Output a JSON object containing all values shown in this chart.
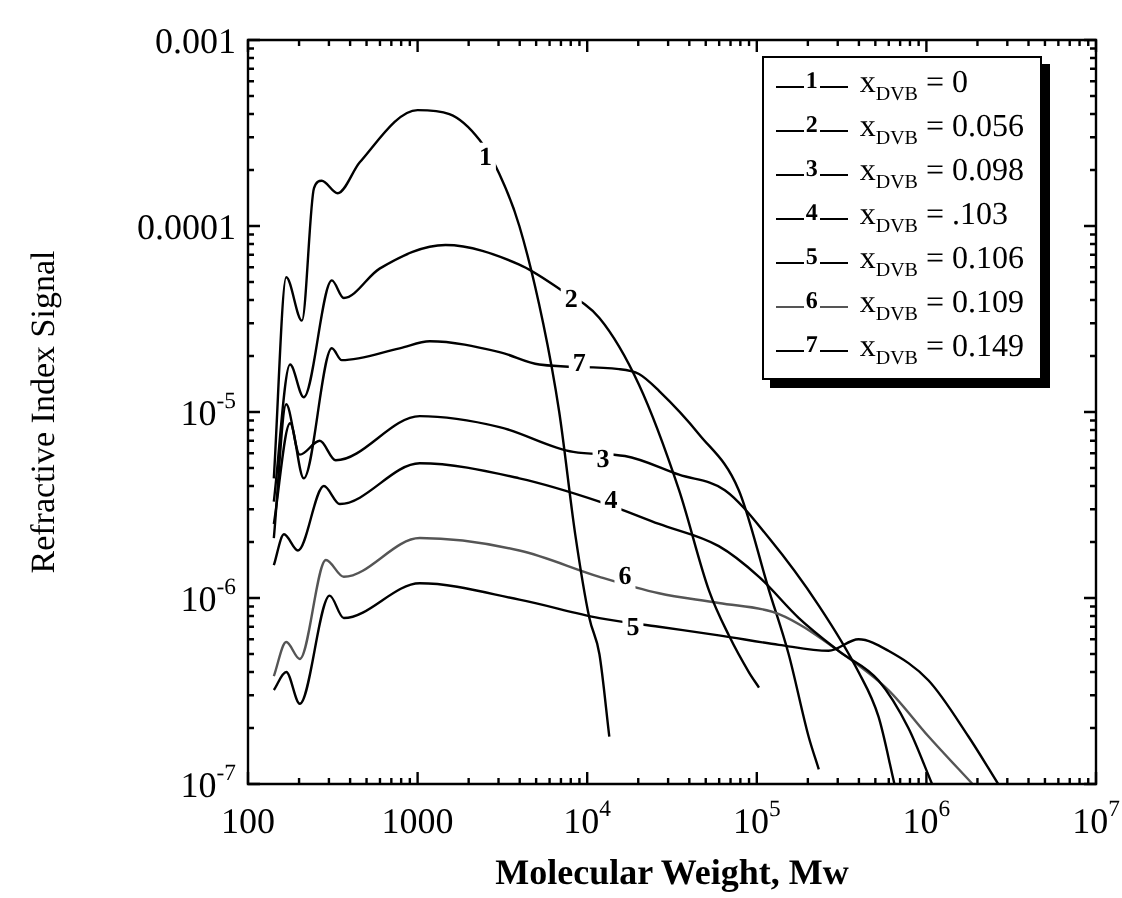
{
  "chart_data": {
    "type": "line",
    "xlabel": "Molecular Weight, Mw",
    "ylabel": "Refractive Index Signal",
    "log": "xy",
    "grid": false,
    "legend": "top right",
    "marker": "none",
    "line_style": "solid",
    "xlim": [
      100,
      10000000
    ],
    "ylim": [
      1e-07,
      0.001
    ],
    "xticks": [
      100,
      {
        "value": 200,
        "label": null
      },
      {
        "value": 300,
        "label": null
      },
      {
        "value": 400,
        "label": null
      },
      {
        "value": 500,
        "label": null
      },
      {
        "value": 600,
        "label": null
      },
      {
        "value": 700,
        "label": null
      },
      {
        "value": 800,
        "label": null
      },
      {
        "value": 900,
        "label": null
      },
      1000,
      {
        "value": 2000,
        "label": null
      },
      {
        "value": 3000,
        "label": null
      },
      {
        "value": 4000,
        "label": null
      },
      {
        "value": 5000,
        "label": null
      },
      {
        "value": 6000,
        "label": null
      },
      {
        "value": 7000,
        "label": null
      },
      {
        "value": 8000,
        "label": null
      },
      {
        "value": 9000,
        "label": null
      },
      {
        "value": 10000,
        "label": "10$^{4}$"
      },
      {
        "value": 20000,
        "label": null
      },
      {
        "value": 30000,
        "label": null
      },
      {
        "value": 40000,
        "label": null
      },
      {
        "value": 50000,
        "label": null
      },
      {
        "value": 60000,
        "label": null
      },
      {
        "value": 70000,
        "label": null
      },
      {
        "value": 80000,
        "label": null
      },
      {
        "value": 90000,
        "label": null
      },
      {
        "value": 100000,
        "label": "10$^{5}$"
      },
      {
        "value": 200000,
        "label": null
      },
      {
        "value": 300000,
        "label": null
      },
      {
        "value": 400000,
        "label": null
      },
      {
        "value": 500000,
        "label": null
      },
      {
        "value": 600000,
        "label": null
      },
      {
        "value": 700000,
        "label": null
      },
      {
        "value": 800000,
        "label": null
      },
      {
        "value": 900000,
        "label": null
      },
      {
        "value": 1000000,
        "label": "10$^{6}$"
      },
      {
        "value": 2000000,
        "label": null
      },
      {
        "value": 3000000,
        "label": null
      },
      {
        "value": 4000000,
        "label": null
      },
      {
        "value": 5000000,
        "label": null
      },
      {
        "value": 6000000,
        "label": null
      },
      {
        "value": 7000000,
        "label": null
      },
      {
        "value": 8000000,
        "label": null
      },
      {
        "value": 9000000,
        "label": null
      },
      {
        "value": 10000000,
        "label": "10$^{7}$"
      }
    ],
    "yticks": [
      {
        "value": 1e-07,
        "label": "10$^{-7}$"
      },
      {
        "value": 2e-07,
        "label": null
      },
      {
        "value": 3e-07,
        "label": null
      },
      {
        "value": 4e-07,
        "label": null
      },
      {
        "value": 5e-07,
        "label": null
      },
      {
        "value": 6e-07,
        "label": null
      },
      {
        "value": 7e-07,
        "label": null
      },
      {
        "value": 8e-07,
        "label": null
      },
      {
        "value": 9e-07,
        "label": null
      },
      {
        "value": 1e-06,
        "label": "10$^{-6}$"
      },
      {
        "value": 2e-06,
        "label": null
      },
      {
        "value": 3e-06,
        "label": null
      },
      {
        "value": 4e-06,
        "label": null
      },
      {
        "value": 5e-06,
        "label": null
      },
      {
        "value": 6e-06,
        "label": null
      },
      {
        "value": 7e-06,
        "label": null
      },
      {
        "value": 8e-06,
        "label": null
      },
      {
        "value": 9e-06,
        "label": null
      },
      {
        "value": 1e-05,
        "label": "10$^{-5}$"
      },
      {
        "value": 2e-05,
        "label": null
      },
      {
        "value": 3e-05,
        "label": null
      },
      {
        "value": 4e-05,
        "label": null
      },
      {
        "value": 5e-05,
        "label": null
      },
      {
        "value": 6e-05,
        "label": null
      },
      {
        "value": 7e-05,
        "label": null
      },
      {
        "value": 8e-05,
        "label": null
      },
      {
        "value": 9e-05,
        "label": null
      },
      {
        "value": 0.0001,
        "label": "0.0001"
      },
      {
        "value": 0.0002,
        "label": null
      },
      {
        "value": 0.0003,
        "label": null
      },
      {
        "value": 0.0004,
        "label": null
      },
      {
        "value": 0.0005,
        "label": null
      },
      {
        "value": 0.0006,
        "label": null
      },
      {
        "value": 0.0007,
        "label": null
      },
      {
        "value": 0.0008,
        "label": null
      },
      {
        "value": 0.0009,
        "label": null
      },
      {
        "value": 0.001,
        "label": "0.001"
      }
    ],
    "series": [
      {
        "name": "x$_{DVB}$ = 0",
        "color": "#000000",
        "x": [
          142,
          168,
          208,
          245,
          272,
          338,
          456,
          1000,
          1540,
          2320,
          3040,
          3980,
          5500,
          6840,
          8500,
          10300,
          11800,
          13500
        ],
        "values": [
          4.4e-06,
          5.3e-05,
          3.1e-05,
          0.00016,
          0.000175,
          0.00015,
          0.00022,
          0.00042,
          0.0004,
          0.00029,
          0.00019,
          0.0001,
          3e-05,
          1e-05,
          2.2e-06,
          7.8e-07,
          5e-07,
          1.8e-07
        ]
      },
      {
        "name": "x$_{DVB}$ = 0.056",
        "color": "#000000",
        "x": [
          142,
          177,
          213,
          312,
          367,
          597,
          1460,
          3980,
          6840,
          11800,
          20200,
          34800,
          52200,
          68400,
          89700,
          103000
        ],
        "values": [
          3.3e-06,
          1.8e-05,
          1.2e-05,
          5.1e-05,
          4.1e-05,
          5.9e-05,
          7.9e-05,
          6.2e-05,
          4.6e-05,
          3.2e-05,
          1.4e-05,
          3.8e-06,
          1.1e-06,
          6.3e-07,
          4e-07,
          3.3e-07
        ]
      },
      {
        "name": "x$_{DVB}$ = 0.098",
        "color": "#000000",
        "x": [
          142,
          168,
          202,
          265,
          329,
          1030,
          3040,
          8280,
          16700,
          34800,
          64800,
          118000,
          232000,
          398000,
          522000,
          648000
        ],
        "values": [
          2.1e-06,
          1.1e-05,
          5.9e-06,
          7e-06,
          5.5e-06,
          9.5e-06,
          8.3e-06,
          6.1e-06,
          5.8e-06,
          4.6e-06,
          3.8e-06,
          2.1e-06,
          9.1e-07,
          4e-07,
          2.3e-07,
          1e-07
        ]
      },
      {
        "name": "x$_{DVB}$ = .103",
        "color": "#000000",
        "x": [
          142,
          163,
          197,
          280,
          348,
          1030,
          3980,
          11800,
          26500,
          59700,
          103000,
          177000,
          303000,
          522000,
          783000,
          1080000
        ],
        "values": [
          1.5e-06,
          2.2e-06,
          1.8e-06,
          4e-06,
          3.2e-06,
          5.3e-06,
          4.4e-06,
          3.3e-06,
          2.5e-06,
          1.9e-06,
          1.3e-06,
          7.8e-07,
          5.2e-07,
          3.6e-07,
          2e-07,
          1e-07
        ]
      },
      {
        "name": "x$_{DVB}$ = 0.106",
        "color": "#000000",
        "x": [
          142,
          168,
          202,
          303,
          367,
          1030,
          3980,
          11800,
          26500,
          59700,
          135000,
          265000,
          398000,
          597000,
          1030000,
          1770000,
          2650000
        ],
        "values": [
          3.2e-07,
          4e-07,
          2.7e-07,
          1.03e-06,
          7.8e-07,
          1.2e-06,
          9.8e-07,
          7.8e-07,
          7e-07,
          6.3e-07,
          5.6e-07,
          5.2e-07,
          6e-07,
          5.2e-07,
          3.6e-07,
          1.8e-07,
          1e-07
        ]
      },
      {
        "name": "x$_{DVB}$ = 0.109",
        "color": "#555555",
        "x": [
          142,
          168,
          202,
          288,
          367,
          1030,
          3980,
          11800,
          26500,
          59700,
          135000,
          303000,
          597000,
          1030000,
          1870000
        ],
        "values": [
          3.8e-07,
          5.8e-07,
          4.7e-07,
          1.6e-06,
          1.3e-06,
          2.1e-06,
          1.8e-06,
          1.3e-06,
          1.06e-06,
          9.4e-07,
          8.2e-07,
          5.2e-07,
          3.2e-07,
          1.8e-07,
          1e-07
        ]
      },
      {
        "name": "x$_{DVB}$ = 0.149",
        "color": "#000000",
        "x": [
          142,
          177,
          213,
          312,
          357,
          783,
          1180,
          3040,
          5220,
          15400,
          20200,
          26500,
          45600,
          78300,
          118000,
          154000,
          202000,
          232000
        ],
        "values": [
          2.5e-06,
          8.7e-06,
          4.4e-06,
          2.2e-05,
          1.9e-05,
          2.2e-05,
          2.4e-05,
          2.1e-05,
          1.8e-05,
          1.7e-05,
          1.6e-05,
          1.3e-05,
          7.6e-06,
          3.8e-06,
          1.1e-06,
          5e-07,
          1.8e-07,
          1.2e-07
        ]
      }
    ],
    "annotations": [
      {
        "text": "1",
        "x": 2510,
        "y": 0.00023
      },
      {
        "text": "2",
        "x": 8050,
        "y": 4e-05
      },
      {
        "text": "3",
        "x": 12400,
        "y": 5.5e-06
      },
      {
        "text": "4",
        "x": 13800,
        "y": 3.3e-06
      },
      {
        "text": "5",
        "x": 18600,
        "y": 6.9e-07
      },
      {
        "text": "6",
        "x": 16700,
        "y": 1.3e-06
      },
      {
        "text": "7",
        "x": 8980,
        "y": 1.8e-05
      }
    ]
  }
}
